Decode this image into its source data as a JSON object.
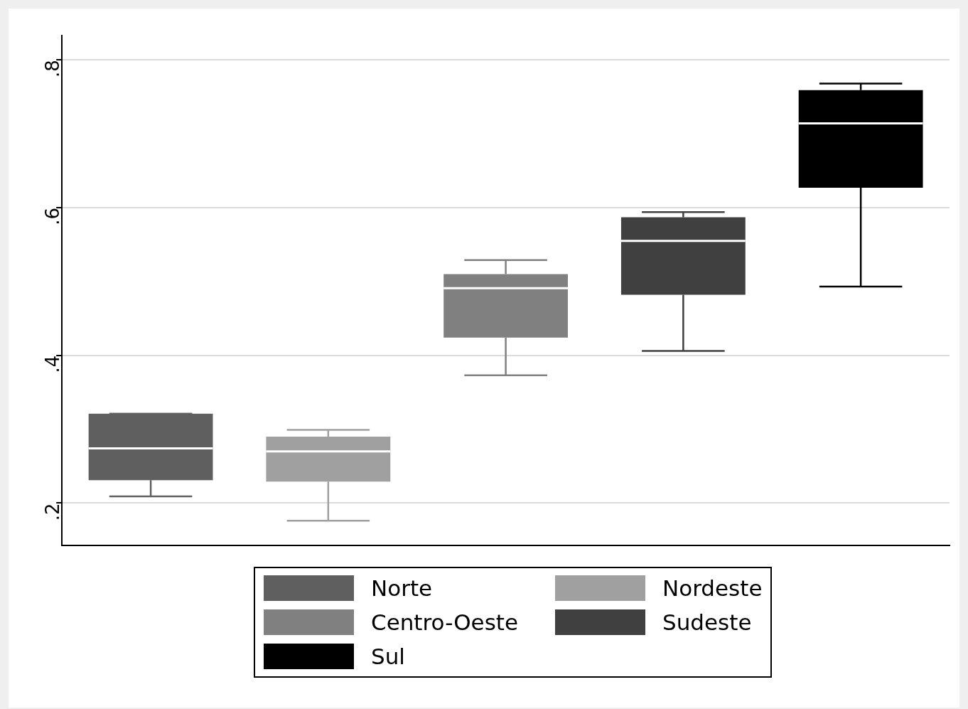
{
  "chart_data": {
    "type": "box",
    "categories": [
      null,
      null,
      null,
      null,
      null
    ],
    "series": [
      {
        "name": "Norte",
        "color": "#5f5f5f",
        "boxes": [
          {
            "low": 0.209,
            "q1": 0.231,
            "median": 0.274,
            "q3": 0.321,
            "high": 0.321
          },
          null,
          null,
          null,
          null
        ]
      },
      {
        "name": "Nordeste",
        "color": "#a0a0a0",
        "boxes": [
          null,
          {
            "low": 0.176,
            "q1": 0.229,
            "median": 0.27,
            "q3": 0.29,
            "high": 0.299
          },
          null,
          null,
          null
        ]
      },
      {
        "name": "Centro-Oeste",
        "color": "#808080",
        "boxes": [
          null,
          null,
          {
            "low": 0.373,
            "q1": 0.424,
            "median": 0.491,
            "q3": 0.51,
            "high": 0.529
          },
          null,
          null
        ]
      },
      {
        "name": "Sudeste",
        "color": "#404040",
        "boxes": [
          null,
          null,
          null,
          {
            "low": 0.406,
            "q1": 0.482,
            "median": 0.555,
            "q3": 0.587,
            "high": 0.594
          },
          null
        ]
      },
      {
        "name": "Sul",
        "color": "#000000",
        "boxes": [
          null,
          null,
          null,
          null,
          {
            "low": 0.493,
            "q1": 0.627,
            "median": 0.714,
            "q3": 0.759,
            "high": 0.768
          }
        ]
      }
    ],
    "ylim": [
      0.143,
      0.833
    ],
    "yticks": [
      {
        "value": 0.2,
        "label": ".2"
      },
      {
        "value": 0.4,
        "label": ".4"
      },
      {
        "value": 0.6,
        "label": ".6"
      },
      {
        "value": 0.8,
        "label": ".8"
      }
    ],
    "grid": "y",
    "legend": "bottom"
  }
}
